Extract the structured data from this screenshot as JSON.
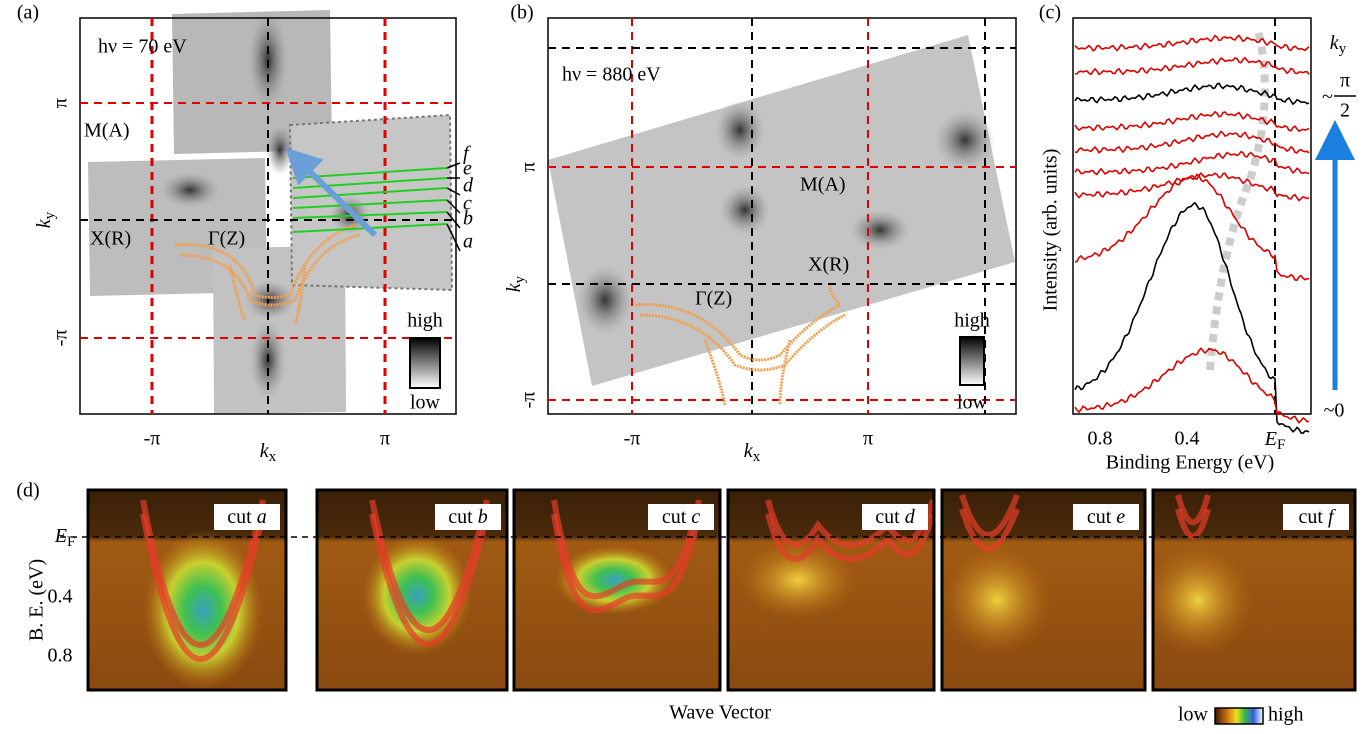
{
  "panel_a": {
    "label": "(a)",
    "photon_energy": "hν = 70 eV",
    "y_axis": {
      "symbol": "k",
      "sub": "y"
    },
    "x_axis": {
      "symbol": "k",
      "sub": "x"
    },
    "yticks": [
      "π",
      "-π"
    ],
    "xticks": [
      "-π",
      "π"
    ],
    "points": [
      "M(A)",
      "X(R)",
      "Γ(Z)"
    ],
    "cuts": [
      "f",
      "e",
      "d",
      "c",
      "b",
      "a"
    ],
    "colorbar": [
      "high",
      "low"
    ]
  },
  "panel_b": {
    "label": "(b)",
    "photon_energy": "hν = 880 eV",
    "y_axis": {
      "symbol": "k",
      "sub": "y"
    },
    "x_axis": {
      "symbol": "k",
      "sub": "x"
    },
    "yticks": [
      "π",
      "-π"
    ],
    "xticks": [
      "-π",
      "π"
    ],
    "points": [
      "M(A)",
      "X(R)",
      "Γ(Z)"
    ],
    "colorbar": [
      "high",
      "low"
    ]
  },
  "panel_c": {
    "label": "(c)",
    "y_axis": "Intensity (arb. units)",
    "x_axis": "Binding Energy (eV)",
    "xticks": [
      "0.8",
      "0.4",
      {
        "symbol": "E",
        "sub": "F"
      }
    ],
    "ky": {
      "symbol": "k",
      "sub": "y"
    },
    "top": {
      "prefix": "~",
      "numerator": "π",
      "denominator": "2"
    },
    "bottom": "~0"
  },
  "panel_d": {
    "label": "(d)",
    "y_axis": "B. E. (eV)",
    "yticks": [
      {
        "symbol": "E",
        "sub": "F"
      },
      "0.4",
      "0.8"
    ],
    "cuts": [
      {
        "word": "cut",
        "letter": "a"
      },
      {
        "word": "cut",
        "letter": "b"
      },
      {
        "word": "cut",
        "letter": "c"
      },
      {
        "word": "cut",
        "letter": "d"
      },
      {
        "word": "cut",
        "letter": "e"
      },
      {
        "word": "cut",
        "letter": "f"
      }
    ],
    "x_axis": "Wave Vector",
    "colorbar": [
      "low",
      "high"
    ]
  }
}
